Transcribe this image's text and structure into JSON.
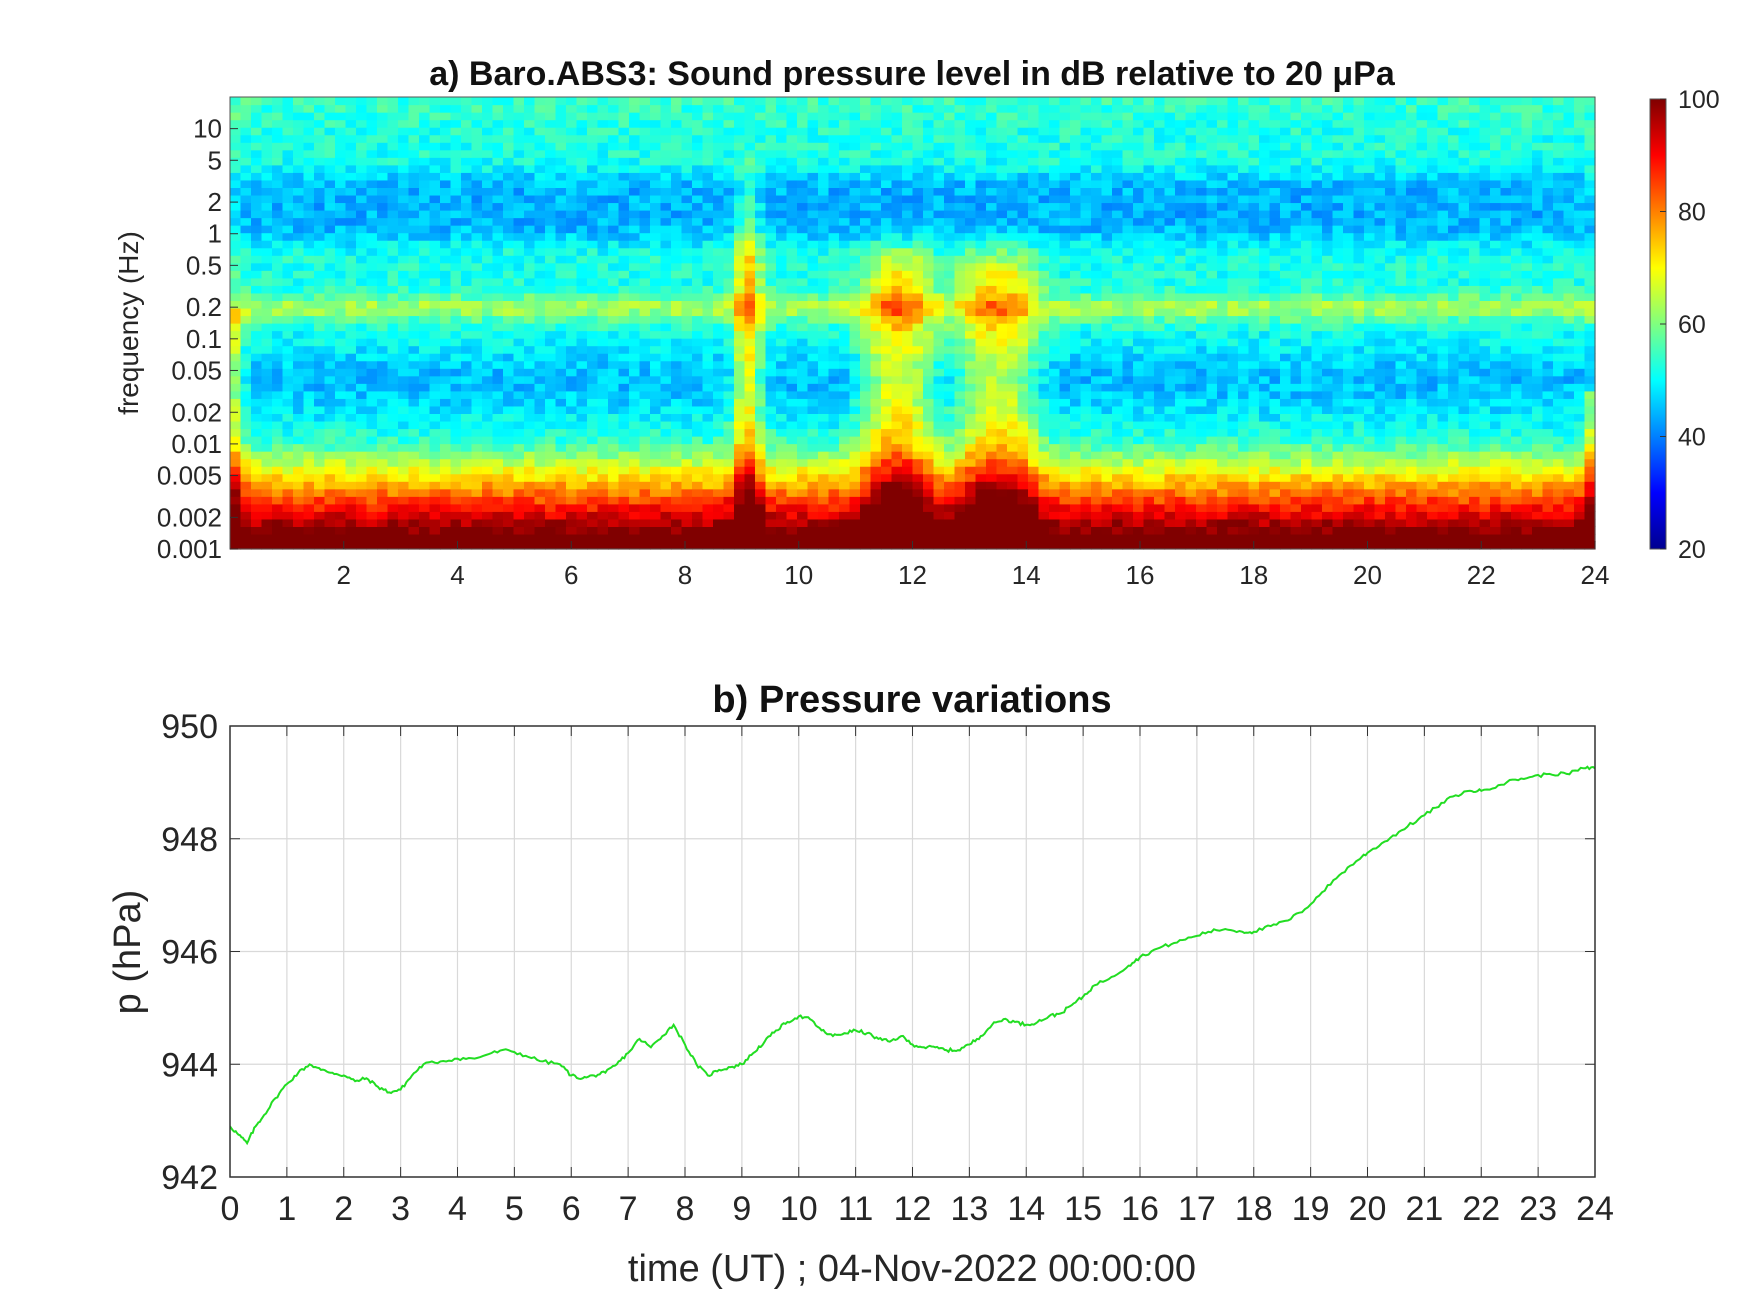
{
  "chart_data": [
    {
      "type": "heatmap",
      "title": "a) Baro.ABS3: Sound pressure level in dB relative to 20 μPa",
      "xlabel": "",
      "ylabel": "frequency (Hz)",
      "y_scale": "log",
      "xlim": [
        0,
        24
      ],
      "ylim": [
        0.001,
        20
      ],
      "x_ticks": [
        2,
        4,
        6,
        8,
        10,
        12,
        14,
        16,
        18,
        20,
        22,
        24
      ],
      "x_tick_labels": [
        "2",
        "4",
        "6",
        "8",
        "10",
        "12",
        "14",
        "16",
        "18",
        "20",
        "22",
        "24"
      ],
      "y_ticks": [
        0.001,
        0.002,
        0.005,
        0.01,
        0.02,
        0.05,
        0.1,
        0.2,
        0.5,
        1,
        2,
        5,
        10
      ],
      "y_tick_labels": [
        "0.001",
        "0.002",
        "0.005",
        "0.01",
        "0.02",
        "0.05",
        "0.1",
        "0.2",
        "0.5",
        "1",
        "2",
        "5",
        "10"
      ],
      "colorbar": {
        "colormap": "jet",
        "range": [
          20,
          100
        ],
        "ticks": [
          20,
          40,
          60,
          80,
          100
        ],
        "tick_labels": [
          "20",
          "40",
          "60",
          "80",
          "100"
        ]
      },
      "features": {
        "background_high_freq_db": 52,
        "band_0_5_to_5_hz_db": 44,
        "band_0_15_to_0_3_hz_db": 63,
        "low_freq_below_0_003_hz_db": 88,
        "event_times_h": [
          9.1,
          11.5,
          12.0,
          13.2,
          13.8
        ]
      }
    },
    {
      "type": "line",
      "title": "b) Pressure variations",
      "xlabel": "time (UT) ; 04-Nov-2022 00:00:00",
      "ylabel": "p (hPa)",
      "xlim": [
        0,
        24
      ],
      "ylim": [
        942,
        950
      ],
      "grid": true,
      "x_ticks": [
        0,
        1,
        2,
        3,
        4,
        5,
        6,
        7,
        8,
        9,
        10,
        11,
        12,
        13,
        14,
        15,
        16,
        17,
        18,
        19,
        20,
        21,
        22,
        23,
        24
      ],
      "x_tick_labels": [
        "0",
        "1",
        "2",
        "3",
        "4",
        "5",
        "6",
        "7",
        "8",
        "9",
        "10",
        "11",
        "12",
        "13",
        "14",
        "15",
        "16",
        "17",
        "18",
        "19",
        "20",
        "21",
        "22",
        "23",
        "24"
      ],
      "y_ticks": [
        942,
        944,
        946,
        948,
        950
      ],
      "y_tick_labels": [
        "942",
        "944",
        "946",
        "948",
        "950"
      ],
      "line_color": "#22dd22",
      "series": [
        {
          "x": [
            0,
            0.15,
            0.3,
            0.45,
            0.6,
            0.8,
            1.0,
            1.2,
            1.4,
            1.6,
            1.8,
            2.0,
            2.2,
            2.4,
            2.6,
            2.8,
            3.0,
            3.2,
            3.4,
            3.7,
            4.0,
            4.3,
            4.6,
            4.9,
            5.2,
            5.5,
            5.8,
            6.0,
            6.2,
            6.4,
            6.6,
            6.8,
            7.0,
            7.2,
            7.4,
            7.6,
            7.8,
            8.0,
            8.2,
            8.4,
            8.6,
            8.8,
            9.0,
            9.2,
            9.4,
            9.6,
            9.8,
            10.0,
            10.2,
            10.4,
            10.6,
            10.8,
            11.0,
            11.2,
            11.4,
            11.6,
            11.8,
            12.0,
            12.2,
            12.4,
            12.6,
            12.8,
            13.0,
            13.2,
            13.4,
            13.6,
            13.8,
            14.0,
            14.2,
            14.4,
            14.6,
            14.8,
            15.0,
            15.2,
            15.5,
            15.8,
            16.0,
            16.3,
            16.6,
            16.9,
            17.2,
            17.5,
            17.8,
            18.0,
            18.3,
            18.6,
            18.9,
            19.2,
            19.5,
            19.8,
            20.0,
            20.3,
            20.6,
            20.9,
            21.2,
            21.5,
            21.8,
            22.0,
            22.3,
            22.6,
            22.9,
            23.2,
            23.5,
            23.8,
            24.0
          ],
          "y": [
            942.9,
            942.75,
            942.6,
            942.9,
            943.1,
            943.4,
            943.65,
            943.85,
            944.0,
            943.9,
            943.85,
            943.8,
            943.7,
            943.75,
            943.6,
            943.5,
            943.55,
            943.8,
            944.0,
            944.05,
            944.1,
            944.1,
            944.2,
            944.25,
            944.15,
            944.05,
            944.0,
            943.8,
            943.75,
            943.8,
            943.85,
            944.0,
            944.2,
            944.45,
            944.3,
            944.5,
            944.7,
            944.35,
            944.0,
            943.8,
            943.9,
            943.95,
            944.0,
            944.2,
            944.4,
            944.6,
            944.75,
            944.85,
            944.8,
            944.6,
            944.5,
            944.55,
            944.6,
            944.55,
            944.45,
            944.4,
            944.5,
            944.35,
            944.3,
            944.3,
            944.25,
            944.25,
            944.35,
            944.5,
            944.7,
            944.8,
            944.75,
            944.7,
            944.75,
            944.85,
            944.9,
            945.05,
            945.2,
            945.4,
            945.55,
            945.75,
            945.9,
            946.05,
            946.15,
            946.25,
            946.35,
            946.4,
            946.35,
            946.35,
            946.45,
            946.55,
            946.75,
            947.05,
            947.35,
            947.6,
            947.75,
            947.95,
            948.15,
            948.35,
            948.55,
            948.75,
            948.85,
            948.85,
            948.95,
            949.05,
            949.1,
            949.15,
            949.15,
            949.25,
            949.25
          ]
        }
      ]
    }
  ]
}
